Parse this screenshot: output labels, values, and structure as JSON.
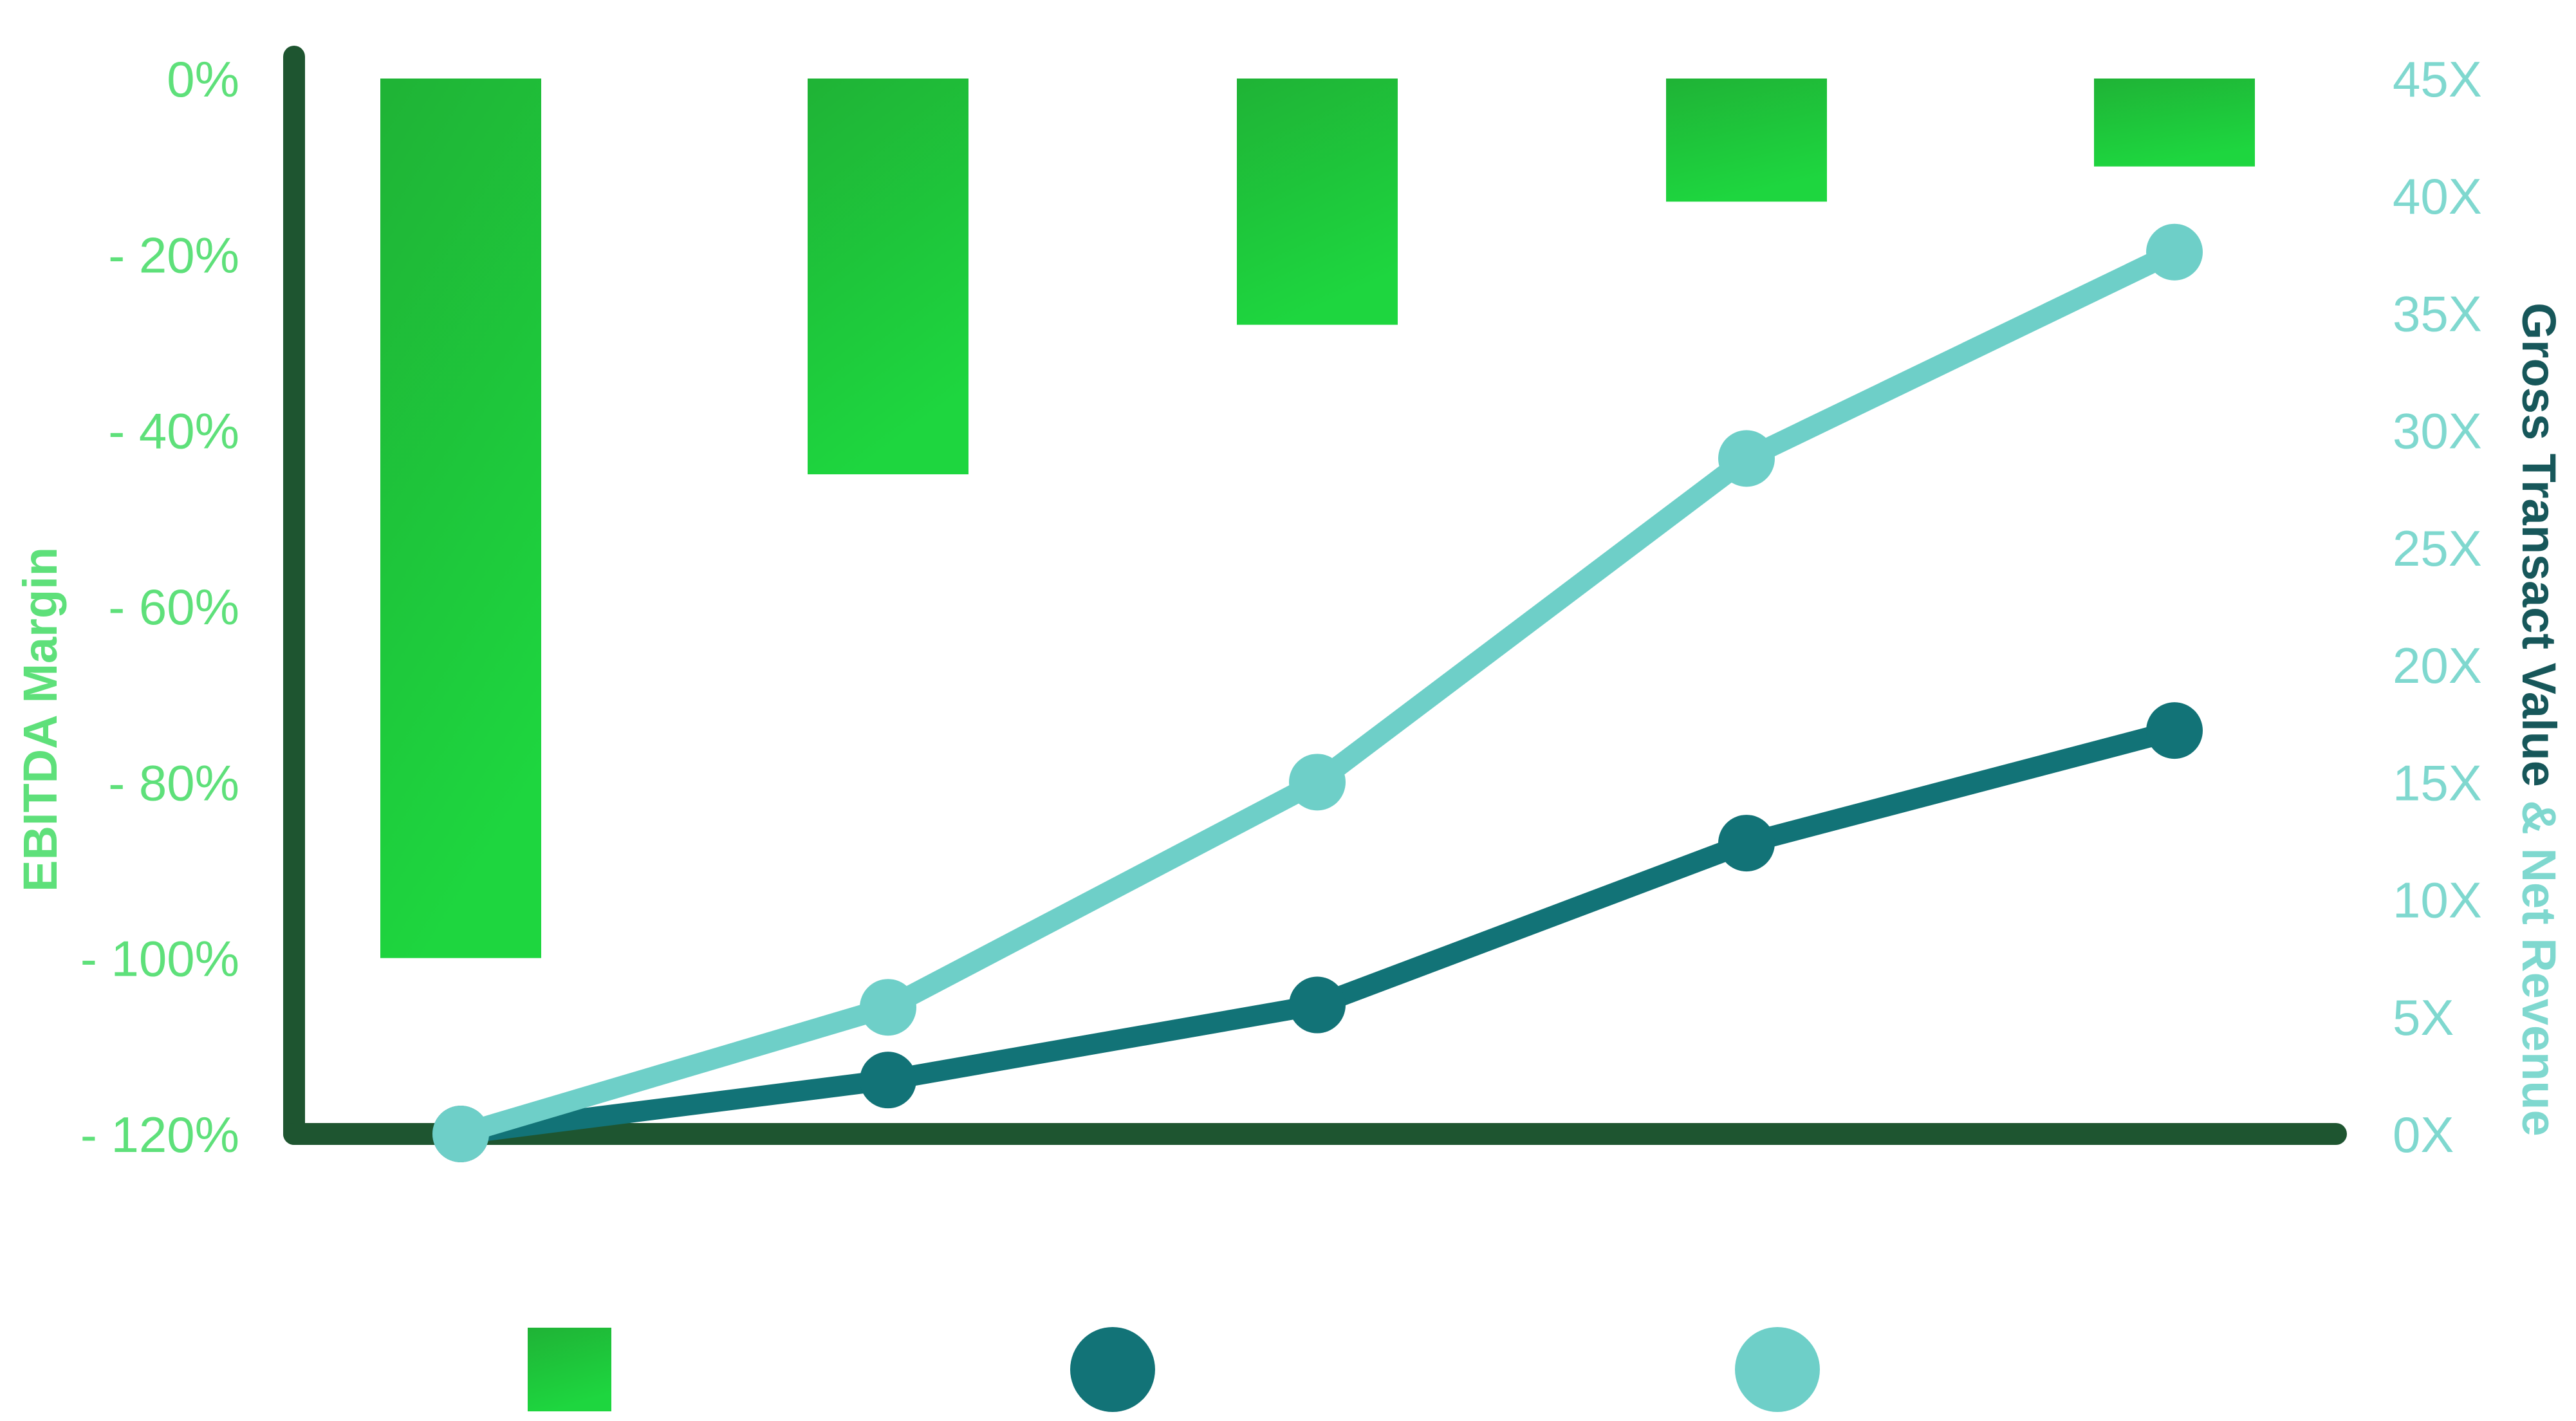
{
  "chart_data": {
    "type": "bar",
    "title": "",
    "categories": [
      "",
      "",
      "",
      "",
      ""
    ],
    "y_left": {
      "label": "EBITDA Margin",
      "range": [
        -120,
        0
      ],
      "ticks": [
        0,
        -20,
        -40,
        -60,
        -80,
        -100,
        -120
      ],
      "tick_labels": [
        "0%",
        "- 20%",
        "- 40%",
        "- 60%",
        "- 80%",
        "- 100%",
        "- 120%"
      ]
    },
    "y_right": {
      "label_part1": "Gross Transact Value",
      "label_sep": " & ",
      "label_part2": "Net Revenue",
      "range": [
        0,
        45
      ],
      "ticks": [
        45,
        40,
        35,
        30,
        25,
        20,
        15,
        10,
        5,
        0
      ],
      "tick_labels": [
        "45X",
        "40X",
        "35X",
        "30X",
        "25X",
        "20X",
        "15X",
        "10X",
        "5X",
        "0X"
      ]
    },
    "series": [
      {
        "kind": "bar",
        "axis": "left",
        "values": [
          -100,
          -45,
          -28,
          -14,
          -10
        ]
      },
      {
        "kind": "line",
        "axis": "right",
        "values": [
          0,
          2.3,
          5.5,
          12.4,
          17.2
        ]
      },
      {
        "kind": "line",
        "axis": "right",
        "values": [
          0,
          5.4,
          15,
          28.8,
          37.6
        ]
      }
    ],
    "legend": {
      "placement": "bottom"
    },
    "grid": false
  },
  "colors": {
    "axis": "#1e5530",
    "bar_top": "#1fb336",
    "bar_bottom": "#1ed63f",
    "left_text": "#5ee07a",
    "right_text": "#7fd8cf",
    "right_title_dark": "#17575a",
    "line_dark": "#127377",
    "line_light": "#6ecfc8"
  }
}
